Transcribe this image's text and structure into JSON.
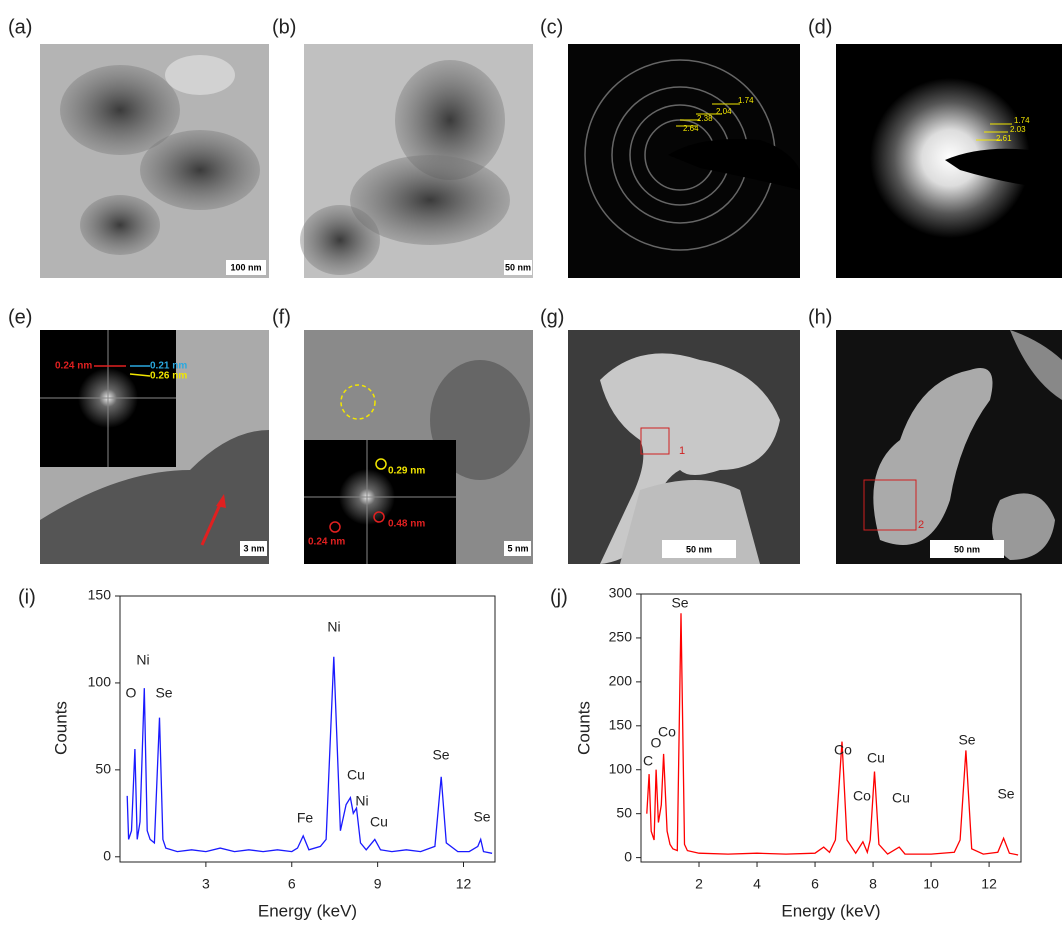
{
  "panels": {
    "a": {
      "label": "(a)",
      "scale_bar": "100 nm"
    },
    "b": {
      "label": "(b)",
      "scale_bar": "50 nm"
    },
    "c": {
      "label": "(c)",
      "d_spacings": [
        "1.74",
        "2.04",
        "2.38",
        "2.64"
      ]
    },
    "d": {
      "label": "(d)",
      "d_spacings": [
        "1.74",
        "2.03",
        "2.61"
      ]
    },
    "e": {
      "label": "(e)",
      "fft_labels": [
        "0.24 nm",
        "0.21 nm",
        "0.26 nm"
      ],
      "scale_bar": "3 nm"
    },
    "f": {
      "label": "(f)",
      "fft_labels": [
        "0.29 nm",
        "0.48 nm",
        "0.24 nm"
      ],
      "scale_bar": "5 nm"
    },
    "g": {
      "label": "(g)",
      "region": "1",
      "scale_bar": "50 nm"
    },
    "h": {
      "label": "(h)",
      "region": "2",
      "scale_bar": "50 nm"
    }
  },
  "chart_data": [
    {
      "type": "line",
      "title": "(i)",
      "x_label": "Energy (keV)",
      "y_label": "Counts",
      "xlim": [
        0,
        13.1
      ],
      "ylim": [
        -3,
        150
      ],
      "xticks": [
        3,
        6,
        9,
        12
      ],
      "yticks": [
        0,
        50,
        100,
        150
      ],
      "x": [
        0.25,
        0.3,
        0.4,
        0.52,
        0.6,
        0.7,
        0.85,
        0.95,
        1.05,
        1.2,
        1.38,
        1.5,
        1.6,
        2,
        2.5,
        3,
        3.5,
        4,
        4.5,
        5,
        5.5,
        6,
        6.2,
        6.4,
        6.6,
        7,
        7.2,
        7.47,
        7.7,
        7.9,
        8.05,
        8.15,
        8.26,
        8.4,
        8.6,
        8.9,
        9.1,
        9.5,
        10,
        10.5,
        11,
        11.22,
        11.4,
        11.8,
        12.2,
        12.5,
        12.6,
        12.7,
        13
      ],
      "series": [
        {
          "color": "#1a1aff",
          "values": [
            35,
            10,
            15,
            62,
            10,
            20,
            97,
            15,
            10,
            8,
            80,
            10,
            5,
            3,
            4,
            3,
            5,
            3,
            4,
            3,
            4,
            3,
            5,
            12,
            4,
            6,
            10,
            115,
            15,
            30,
            34,
            25,
            28,
            8,
            4,
            10,
            4,
            3,
            4,
            3,
            6,
            46,
            8,
            3,
            3,
            6,
            10,
            3,
            2
          ]
        }
      ],
      "annotations": [
        "O",
        "Ni",
        "Se",
        "Ni",
        "Fe",
        "Cu",
        "Ni",
        "Cu",
        "Se",
        "Se"
      ]
    },
    {
      "type": "line",
      "title": "(j)",
      "x_label": "Energy (keV)",
      "y_label": "Counts",
      "xlim": [
        0,
        13.1
      ],
      "ylim": [
        -5,
        300
      ],
      "xticks": [
        2,
        4,
        6,
        8,
        10,
        12
      ],
      "yticks": [
        0,
        50,
        100,
        150,
        200,
        250,
        300
      ],
      "x": [
        0.2,
        0.28,
        0.35,
        0.45,
        0.52,
        0.6,
        0.7,
        0.78,
        0.9,
        1.0,
        1.1,
        1.25,
        1.38,
        1.5,
        1.6,
        2,
        3,
        4,
        5,
        6,
        6.3,
        6.5,
        6.7,
        6.93,
        7.1,
        7.4,
        7.65,
        7.8,
        7.9,
        8.05,
        8.2,
        8.5,
        8.9,
        9.1,
        10,
        10.8,
        11.0,
        11.2,
        11.4,
        11.8,
        12.3,
        12.5,
        12.7,
        13
      ],
      "series": [
        {
          "color": "#ff0000",
          "values": [
            50,
            95,
            30,
            20,
            100,
            40,
            60,
            118,
            30,
            15,
            10,
            8,
            278,
            15,
            8,
            5,
            4,
            5,
            4,
            5,
            12,
            6,
            20,
            132,
            20,
            5,
            18,
            6,
            20,
            98,
            15,
            4,
            12,
            4,
            4,
            6,
            20,
            122,
            10,
            4,
            6,
            22,
            5,
            3
          ]
        }
      ],
      "annotations": [
        "C",
        "O",
        "Co",
        "Se",
        "Co",
        "Co",
        "Cu",
        "Cu",
        "Se",
        "Se"
      ]
    }
  ]
}
